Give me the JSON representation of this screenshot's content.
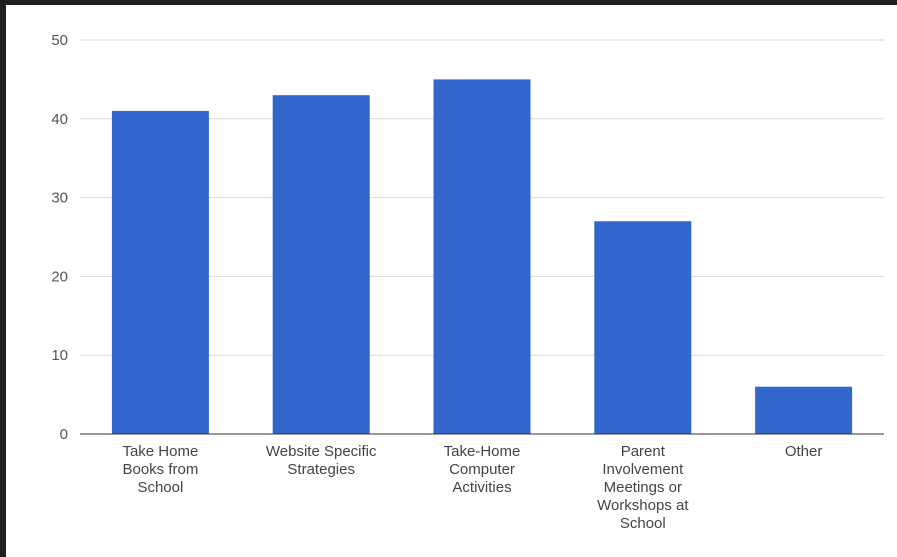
{
  "chart_data": {
    "type": "bar",
    "title": "",
    "xlabel": "",
    "ylabel": "",
    "categories": [
      [
        "Take Home",
        "Books from",
        "School"
      ],
      [
        "Website Specific",
        "Strategies"
      ],
      [
        "Take-Home",
        "Computer",
        "Activities"
      ],
      [
        "Parent",
        "Involvement",
        "Meetings or",
        "Workshops at",
        "School"
      ],
      [
        "Other"
      ]
    ],
    "values": [
      41,
      43,
      45,
      27,
      6
    ],
    "ylim": [
      0,
      50
    ],
    "yticks": [
      0,
      10,
      20,
      30,
      40,
      50
    ],
    "grid": true,
    "legend": "none",
    "bar_color": "#3366cc"
  }
}
